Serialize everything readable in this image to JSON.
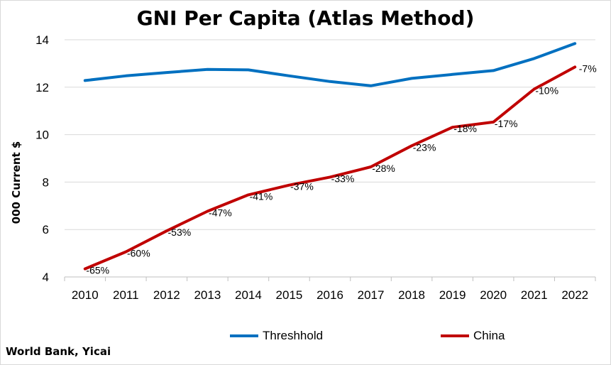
{
  "source_note": "World Bank, Yicai",
  "chart_data": {
    "type": "line",
    "title": "GNI Per Capita (Atlas Method)",
    "xlabel": "",
    "ylabel": "000 Current $",
    "ylim": [
      4,
      14
    ],
    "yticks": [
      4,
      6,
      8,
      10,
      12,
      14
    ],
    "grid": true,
    "legend_position": "bottom",
    "categories": [
      "2010",
      "2011",
      "2012",
      "2013",
      "2014",
      "2015",
      "2016",
      "2017",
      "2018",
      "2019",
      "2020",
      "2021",
      "2022"
    ],
    "series": [
      {
        "name": "Threshhold",
        "color": "#0070C0",
        "values": [
          12.28,
          12.48,
          12.62,
          12.75,
          12.73,
          12.48,
          12.24,
          12.06,
          12.37,
          12.54,
          12.7,
          13.21,
          13.84
        ]
      },
      {
        "name": "China",
        "color": "#C00000",
        "values": [
          4.34,
          5.06,
          5.94,
          6.77,
          7.46,
          7.87,
          8.21,
          8.64,
          9.53,
          10.31,
          10.53,
          11.92,
          12.85
        ],
        "data_labels": [
          "-65%",
          "-60%",
          "-53%",
          "-47%",
          "-41%",
          "-37%",
          "-33%",
          "-28%",
          "-23%",
          "-18%",
          "-17%",
          "-10%",
          "-7%"
        ]
      }
    ]
  }
}
